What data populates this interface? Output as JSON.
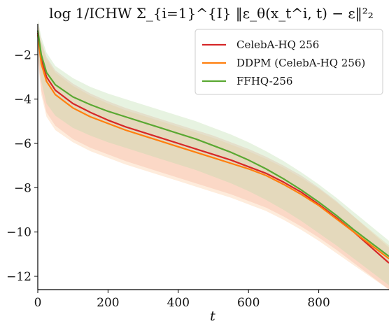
{
  "chart_data": {
    "type": "line",
    "title": "log 1/ICHW Σ_{i=1}^{I} ‖ε_θ(x_t^i, t) − ε‖²₂",
    "xlabel": "t",
    "ylabel": "",
    "xlim": [
      0,
      1000
    ],
    "ylim": [
      -12.6,
      -0.6
    ],
    "xticks": [
      0,
      200,
      400,
      600,
      800
    ],
    "yticks": [
      -2,
      -4,
      -6,
      -8,
      -10,
      -12
    ],
    "legend_position": "top-right",
    "grid": false,
    "series": [
      {
        "name": "CelebA-HQ 256",
        "color": "#d62728",
        "x": [
          0,
          10,
          25,
          50,
          100,
          150,
          200,
          250,
          300,
          350,
          400,
          450,
          500,
          550,
          600,
          650,
          700,
          750,
          800,
          850,
          900,
          950,
          1000
        ],
        "y": [
          -1.0,
          -2.2,
          -3.0,
          -3.6,
          -4.2,
          -4.6,
          -4.95,
          -5.25,
          -5.5,
          -5.75,
          -6.0,
          -6.25,
          -6.5,
          -6.75,
          -7.05,
          -7.35,
          -7.75,
          -8.2,
          -8.75,
          -9.35,
          -10.0,
          -10.7,
          -11.4
        ],
        "band_upper": [
          -0.5,
          -1.4,
          -2.1,
          -2.7,
          -3.3,
          -3.75,
          -4.1,
          -4.4,
          -4.65,
          -4.9,
          -5.15,
          -5.4,
          -5.65,
          -5.95,
          -6.25,
          -6.6,
          -7.0,
          -7.45,
          -8.0,
          -8.6,
          -9.3,
          -10.0,
          -10.7
        ],
        "band_lower": [
          -2.0,
          -3.6,
          -4.6,
          -5.2,
          -5.8,
          -6.2,
          -6.5,
          -6.8,
          -7.05,
          -7.3,
          -7.55,
          -7.8,
          -8.05,
          -8.3,
          -8.6,
          -8.9,
          -9.3,
          -9.75,
          -10.25,
          -10.8,
          -11.4,
          -12.0,
          -12.6
        ],
        "band_color": "#f4a9a0"
      },
      {
        "name": "DDPM (CelebA-HQ 256)",
        "color": "#ff7f0e",
        "x": [
          0,
          10,
          25,
          50,
          100,
          150,
          200,
          250,
          300,
          350,
          400,
          450,
          500,
          550,
          600,
          650,
          700,
          750,
          800,
          850,
          900,
          950,
          1000
        ],
        "y": [
          -1.1,
          -2.4,
          -3.2,
          -3.8,
          -4.4,
          -4.8,
          -5.1,
          -5.4,
          -5.65,
          -5.9,
          -6.15,
          -6.4,
          -6.65,
          -6.9,
          -7.15,
          -7.45,
          -7.85,
          -8.3,
          -8.8,
          -9.4,
          -10.0,
          -10.6,
          -11.2
        ],
        "band_upper": [
          -0.6,
          -1.5,
          -2.2,
          -2.8,
          -3.4,
          -3.85,
          -4.2,
          -4.5,
          -4.75,
          -5.0,
          -5.25,
          -5.5,
          -5.75,
          -6.05,
          -6.35,
          -6.7,
          -7.1,
          -7.55,
          -8.05,
          -8.65,
          -9.3,
          -9.95,
          -10.6
        ],
        "band_lower": [
          -2.1,
          -3.8,
          -4.8,
          -5.4,
          -5.95,
          -6.35,
          -6.65,
          -6.95,
          -7.2,
          -7.45,
          -7.7,
          -7.95,
          -8.2,
          -8.45,
          -8.75,
          -9.05,
          -9.45,
          -9.9,
          -10.4,
          -10.95,
          -11.5,
          -12.05,
          -12.6
        ],
        "band_color": "#fbc99b"
      },
      {
        "name": "FFHQ-256",
        "color": "#5aa832",
        "x": [
          0,
          10,
          25,
          50,
          100,
          150,
          200,
          250,
          300,
          350,
          400,
          450,
          500,
          550,
          600,
          650,
          700,
          750,
          800,
          850,
          900,
          950,
          1000
        ],
        "y": [
          -0.9,
          -2.0,
          -2.8,
          -3.35,
          -3.9,
          -4.25,
          -4.55,
          -4.8,
          -5.05,
          -5.3,
          -5.55,
          -5.8,
          -6.1,
          -6.4,
          -6.75,
          -7.15,
          -7.6,
          -8.1,
          -8.65,
          -9.25,
          -9.9,
          -10.5,
          -11.1
        ],
        "band_upper": [
          -0.4,
          -1.2,
          -1.9,
          -2.5,
          -3.05,
          -3.45,
          -3.75,
          -4.0,
          -4.25,
          -4.5,
          -4.75,
          -5.0,
          -5.3,
          -5.6,
          -5.95,
          -6.35,
          -6.8,
          -7.3,
          -7.85,
          -8.45,
          -9.1,
          -9.75,
          -10.4
        ],
        "band_lower": [
          -1.6,
          -3.2,
          -4.2,
          -4.75,
          -5.3,
          -5.65,
          -5.95,
          -6.2,
          -6.45,
          -6.7,
          -6.95,
          -7.2,
          -7.5,
          -7.8,
          -8.15,
          -8.55,
          -9.0,
          -9.5,
          -10.05,
          -10.6,
          -11.2,
          -11.8,
          -12.4
        ],
        "band_color": "#b9dca8"
      }
    ]
  }
}
